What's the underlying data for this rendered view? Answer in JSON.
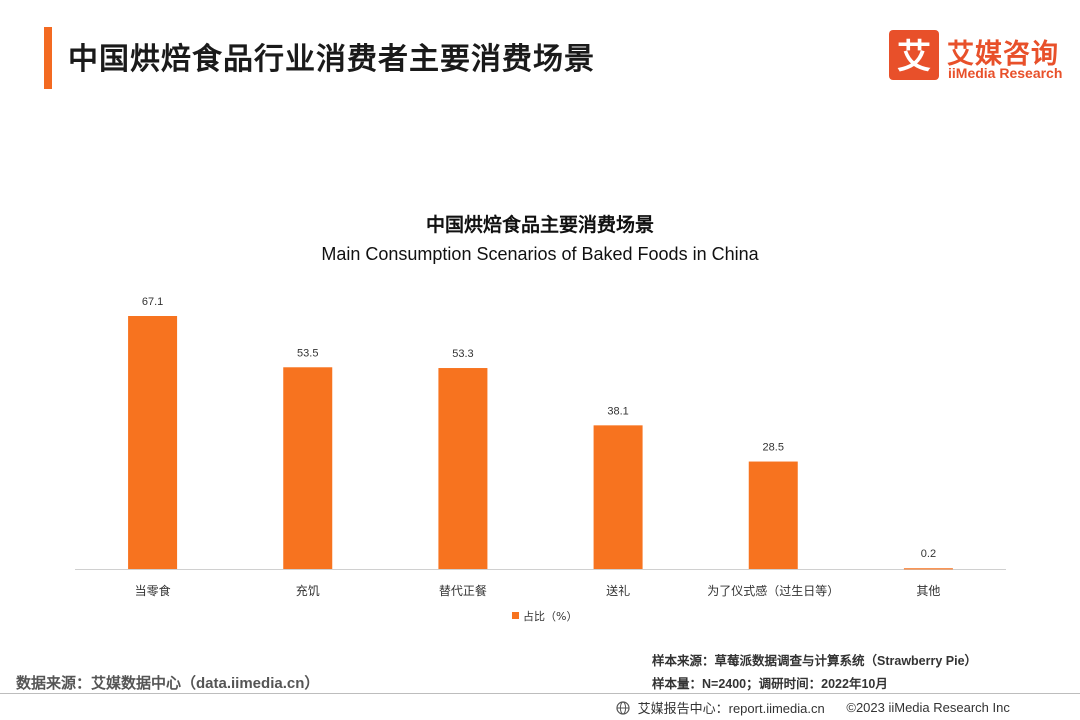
{
  "header": {
    "title": "中国烘焙食品行业消费者主要消费场景",
    "logo_cn": "艾媒咨询",
    "logo_en": "iiMedia Research",
    "logo_mark": "艾"
  },
  "colors": {
    "accent": "#f36a21",
    "bar": "#f7731f",
    "brand": "#e8502a"
  },
  "chart_data": {
    "type": "bar",
    "title": "中国烘焙食品主要消费场景",
    "subtitle": "Main Consumption Scenarios of Baked Foods in China",
    "categories": [
      "当零食",
      "充饥",
      "替代正餐",
      "送礼",
      "为了仪式感（过生日等）",
      "其他"
    ],
    "series": [
      {
        "name": "占比（%）",
        "values": [
          67.1,
          53.5,
          53.3,
          38.1,
          28.5,
          0.2
        ]
      }
    ],
    "value_labels": [
      "67.1",
      "53.5",
      "53.3",
      "38.1",
      "28.5",
      "0.2"
    ],
    "ylim": [
      0,
      80
    ],
    "grid": false,
    "legend_position": "bottom-center"
  },
  "footer": {
    "source_left": "数据来源：艾媒数据中心（data.iimedia.cn）",
    "sample_source": "样本来源：草莓派数据调查与计算系统（Strawberry Pie）",
    "sample_size": "样本量：N=2400；调研时间：2022年10月",
    "report_center": "艾媒报告中心：report.iimedia.cn",
    "copyright": "©2023 iiMedia Research  Inc"
  }
}
